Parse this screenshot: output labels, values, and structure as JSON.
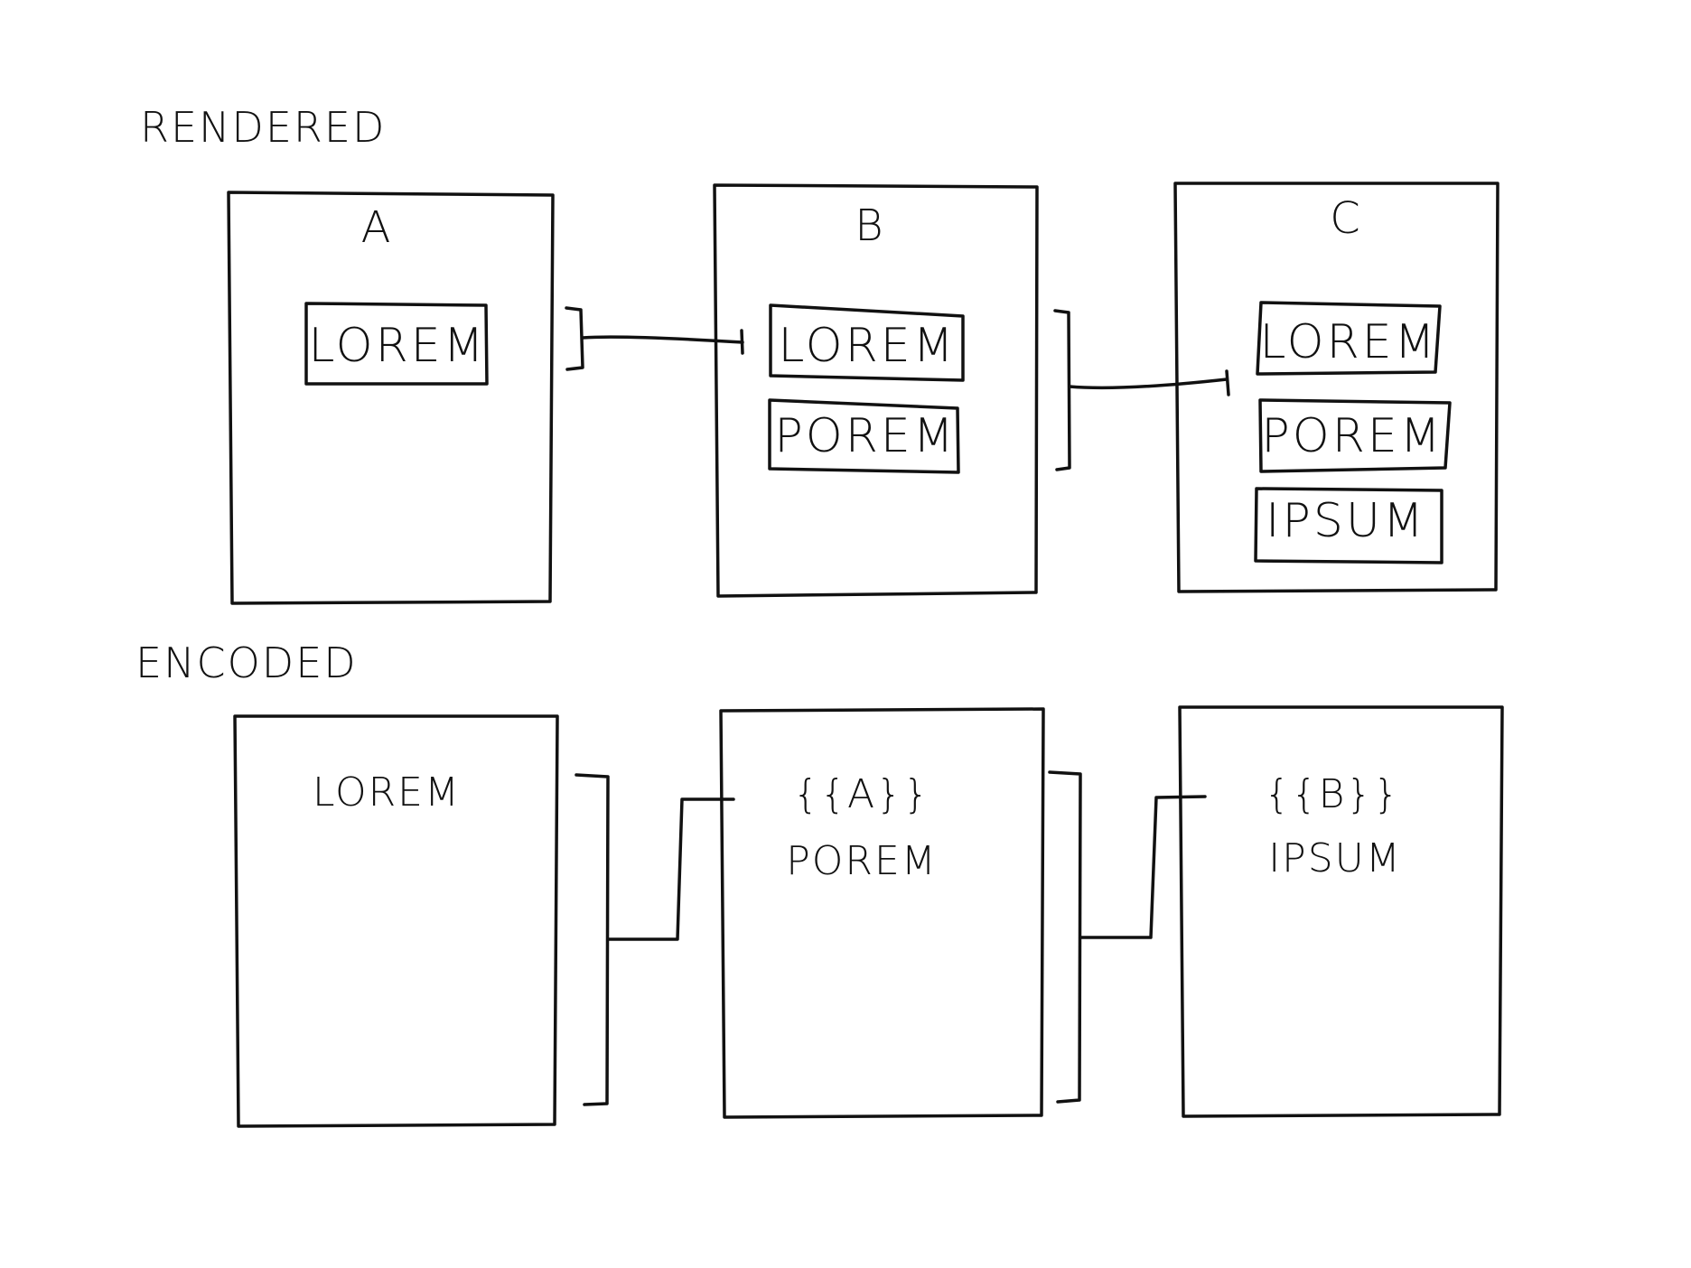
{
  "sections": {
    "rendered_label": "RENDERED",
    "encoded_label": "ENCODED"
  },
  "rendered": {
    "panels": [
      {
        "title": "A",
        "chips": [
          "LOREM"
        ]
      },
      {
        "title": "B",
        "chips": [
          "LOREM",
          "POREM"
        ]
      },
      {
        "title": "C",
        "chips": [
          "LOREM",
          "POREM",
          "IPSUM"
        ]
      }
    ]
  },
  "encoded": {
    "panels": [
      {
        "lines": [
          "LOREM"
        ]
      },
      {
        "lines": [
          "{{A}}",
          "POREM"
        ]
      },
      {
        "lines": [
          "{{B}}",
          "IPSUM"
        ]
      }
    ]
  }
}
